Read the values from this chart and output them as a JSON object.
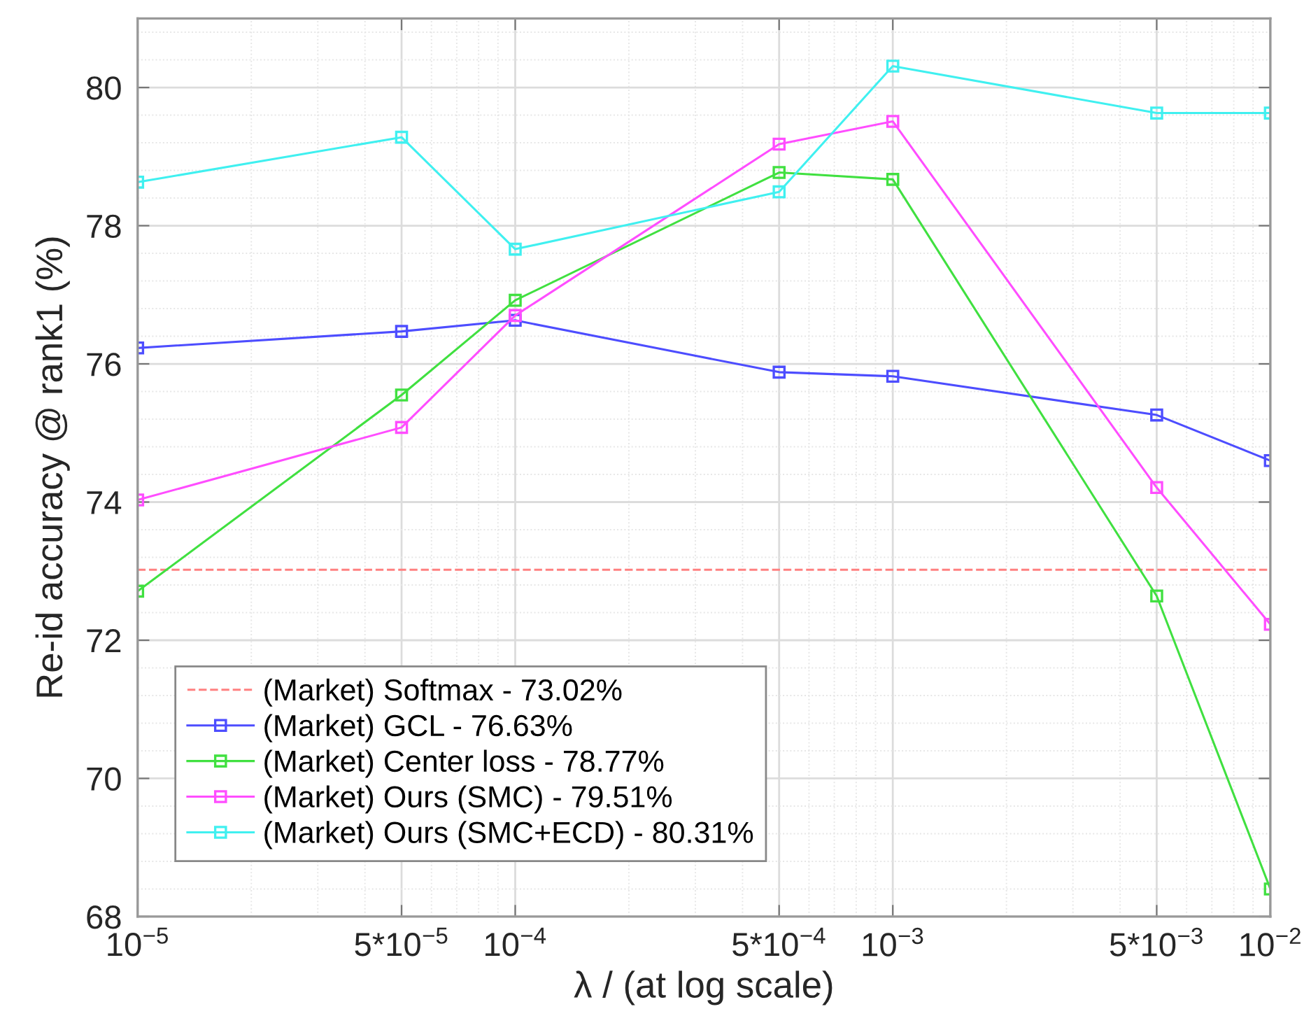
{
  "chart_data": {
    "type": "line",
    "xlabel": "λ / (at log scale)",
    "ylabel": "Re-id accuracy @ rank1 (%)",
    "x": [
      1e-05,
      5e-05,
      0.0001,
      0.0005,
      0.001,
      0.005,
      0.01
    ],
    "log": "x",
    "xlim": [
      1e-05,
      0.01
    ],
    "xticks": [
      {
        "value": 1e-05,
        "label": "10$^{−5}$"
      },
      {
        "value": 5e-05,
        "label": "5*10$^{−5}$"
      },
      {
        "value": 0.0001,
        "label": "10$^{−4}$"
      },
      {
        "value": 0.0005,
        "label": "5*10$^{−4}$"
      },
      {
        "value": 0.001,
        "label": "10$^{−3}$"
      },
      {
        "value": 0.005,
        "label": "5*10$^{−3}$"
      },
      {
        "value": 0.01,
        "label": "10$^{−2}$"
      }
    ],
    "ylim": [
      68,
      81
    ],
    "yticks": [
      68,
      70,
      72,
      74,
      76,
      78,
      80
    ],
    "grid": true,
    "legend": "bottom left",
    "marker": "square",
    "line_style": "solid",
    "ref_lines": [
      {
        "axis": "y",
        "value": 73.02,
        "label": "(Market) Softmax - 73.02%",
        "color": "#ff8080",
        "line_style": "dashed"
      }
    ],
    "series": [
      {
        "name": "(Market) GCL - 76.63%",
        "color": "#4d4dff",
        "values": [
          76.23,
          76.47,
          76.63,
          75.88,
          75.82,
          75.26,
          74.6
        ]
      },
      {
        "name": "(Market) Center loss - 78.77%",
        "color": "#40e040",
        "values": [
          72.71,
          75.55,
          76.92,
          78.77,
          78.67,
          72.64,
          68.4
        ]
      },
      {
        "name": "(Market) Ours (SMC) - 79.51%",
        "color": "#ff4dff",
        "values": [
          74.03,
          75.08,
          76.7,
          79.18,
          79.51,
          74.21,
          72.23
        ]
      },
      {
        "name": "(Market) Ours (SMC+ECD) - 80.31%",
        "color": "#40f0f0",
        "values": [
          78.63,
          79.28,
          77.66,
          78.49,
          80.31,
          79.63,
          79.63
        ]
      }
    ]
  }
}
